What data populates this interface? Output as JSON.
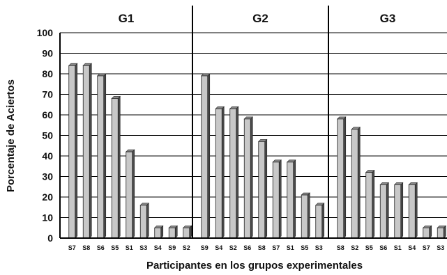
{
  "chart_data": {
    "type": "bar",
    "title": "",
    "xlabel": "Participantes en los grupos experimentales",
    "ylabel": "Porcentaje de Aciertos",
    "ylim": [
      0,
      100
    ],
    "yticks": [
      0,
      10,
      20,
      30,
      40,
      50,
      60,
      70,
      80,
      90,
      100
    ],
    "grid": true,
    "legend": "none",
    "colors": {
      "bar_front": "#c8c8c8",
      "bar_side": "#4a4a4a",
      "bar_top": "#8a8a8a",
      "grid": "#000000",
      "plot_bg": "#ffffff"
    },
    "groups": [
      {
        "name": "G1",
        "categories": [
          "S7",
          "S8",
          "S6",
          "S5",
          "S1",
          "S3",
          "S4",
          "S9",
          "S2"
        ],
        "values": [
          84,
          84,
          79,
          68,
          42,
          16,
          5,
          5,
          5
        ]
      },
      {
        "name": "G2",
        "categories": [
          "S9",
          "S4",
          "S2",
          "S6",
          "S8",
          "S7",
          "S1",
          "S5",
          "S3"
        ],
        "values": [
          79,
          63,
          63,
          58,
          47,
          37,
          37,
          21,
          16
        ]
      },
      {
        "name": "G3",
        "categories": [
          "S8",
          "S2",
          "S5",
          "S6",
          "S1",
          "S4",
          "S7",
          "S3"
        ],
        "values": [
          58,
          53,
          32,
          26,
          26,
          26,
          5,
          5
        ]
      }
    ]
  }
}
